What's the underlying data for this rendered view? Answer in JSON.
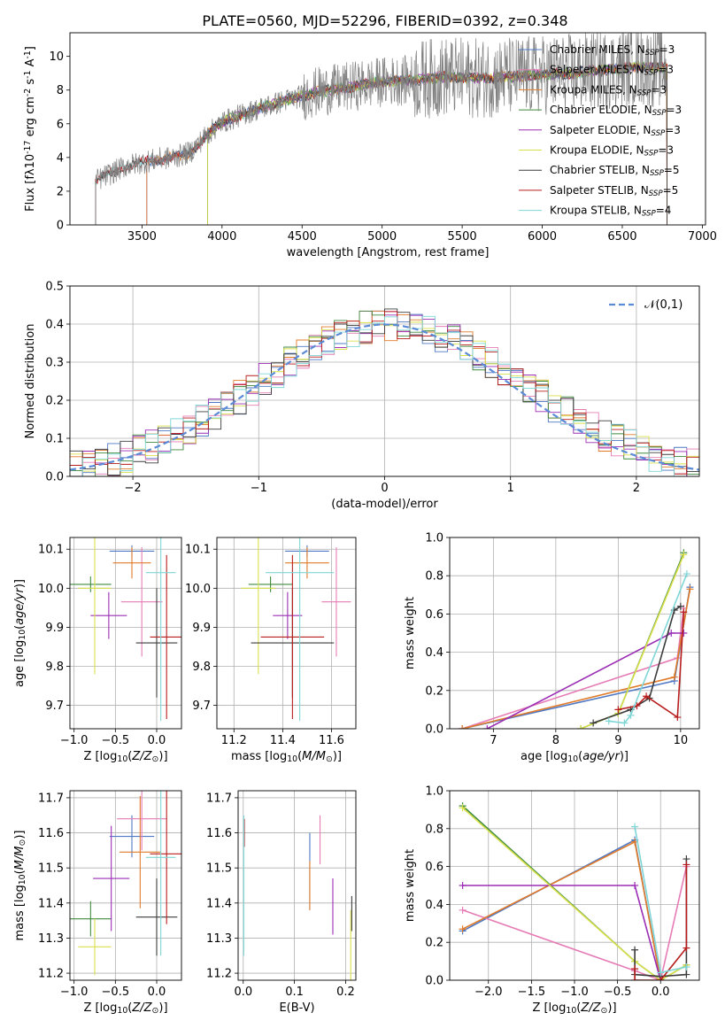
{
  "title": "PLATE=0560, MJD=52296, FIBERID=0392, z=0.348",
  "colors": {
    "chabrier_miles": "#4f78c4",
    "salpeter_miles": "#e67cb5",
    "kroupa_miles": "#e07b2a",
    "chabrier_elodie": "#3f8a3f",
    "salpeter_elodie": "#9b2db5",
    "kroupa_elodie": "#d9e04a",
    "chabrier_stelib": "#3c3c3c",
    "salpeter_stelib": "#b81d1d",
    "kroupa_stelib": "#7fd6d6",
    "data": "#808080",
    "normal": "#5b8bd6"
  },
  "chart_data": [
    {
      "id": "spectrum",
      "type": "line",
      "xlabel": "wavelength [Angstrom, rest frame]",
      "ylabel": "Flux [f$\\lambda$10$^{-17}$ erg cm$^{-2}$ s$^{-1}$ A$^{-1}$]",
      "xlim": [
        3050,
        7020
      ],
      "ylim": [
        0,
        11.4
      ],
      "xticks": [
        "3500",
        "4000",
        "4500",
        "5000",
        "5500",
        "6000",
        "6500",
        "7000"
      ],
      "yticks": [
        "0",
        "2",
        "4",
        "6",
        "8",
        "10"
      ],
      "legend_position": "top-right",
      "legend": [
        {
          "label": "Chabrier MILES, N",
          "sub": "SSP",
          "tail": "=3",
          "color": "chabrier_miles"
        },
        {
          "label": "Salpeter MILES, N",
          "sub": "SSP",
          "tail": "=3",
          "color": "salpeter_miles"
        },
        {
          "label": "Kroupa MILES, N",
          "sub": "SSP",
          "tail": "=3",
          "color": "kroupa_miles"
        },
        {
          "label": "Chabrier ELODIE, N",
          "sub": "SSP",
          "tail": "=3",
          "color": "chabrier_elodie"
        },
        {
          "label": "Salpeter ELODIE, N",
          "sub": "SSP",
          "tail": "=3",
          "color": "salpeter_elodie"
        },
        {
          "label": "Kroupa ELODIE, N",
          "sub": "SSP",
          "tail": "=3",
          "color": "kroupa_elodie"
        },
        {
          "label": "Chabrier STELIB, N",
          "sub": "SSP",
          "tail": "=5",
          "color": "chabrier_stelib"
        },
        {
          "label": "Salpeter STELIB, N",
          "sub": "SSP",
          "tail": "=5",
          "color": "salpeter_stelib"
        },
        {
          "label": "Kroupa STELIB, N",
          "sub": "SSP",
          "tail": "=4",
          "color": "kroupa_stelib"
        }
      ],
      "data_xrange": [
        3210,
        6780
      ],
      "continuum_x": [
        3210,
        3400,
        3600,
        3700,
        3800,
        3900,
        4000,
        4200,
        4400,
        4600,
        4800,
        5000,
        5200,
        5400,
        5600,
        5800,
        6000,
        6200,
        6400,
        6600,
        6780
      ],
      "continuum_y": [
        2.6,
        3.5,
        3.9,
        4.0,
        4.3,
        5.3,
        6.1,
        6.8,
        7.4,
        7.9,
        8.2,
        8.5,
        8.6,
        8.8,
        8.7,
        8.8,
        8.9,
        9.0,
        9.2,
        9.4,
        9.3
      ],
      "model_starts": [
        3210,
        3530,
        3910
      ]
    },
    {
      "id": "residuals",
      "type": "histogram",
      "xlabel": "(data-model)/error",
      "ylabel": "Normed distribution",
      "xlim": [
        -2.5,
        2.5
      ],
      "ylim": [
        0,
        0.5
      ],
      "xticks": [
        "−2",
        "−1",
        "0",
        "1",
        "2"
      ],
      "yticks": [
        "0.0",
        "0.1",
        "0.2",
        "0.3",
        "0.4",
        "0.5"
      ],
      "bin_width": 0.1,
      "legend_label": "$\\mathcal{N}(0,1)$",
      "legend_position": "top-right",
      "normal_mean": 0,
      "normal_std": 1
    },
    {
      "id": "z_age",
      "type": "scatter",
      "xlabel": "Z [log$_{10}$($Z/Z_\\odot$)]",
      "ylabel": "age  [log$_{10}$($age/yr$)]",
      "xlim": [
        -1.05,
        0.3
      ],
      "ylim": [
        9.64,
        10.13
      ],
      "xticks": [
        "−1.0",
        "−0.5",
        "0.0"
      ],
      "yticks": [
        "9.7",
        "9.8",
        "9.9",
        "10.0",
        "10.1"
      ],
      "points": [
        {
          "s": "chabrier_miles",
          "x": -0.3,
          "xe": 0.27,
          "y": 10.095,
          "ye": 0.015
        },
        {
          "s": "salpeter_miles",
          "x": -0.18,
          "xe": 0.25,
          "y": 9.965,
          "ye": 0.14
        },
        {
          "s": "kroupa_miles",
          "x": -0.3,
          "xe": 0.23,
          "y": 10.065,
          "ye": 0.04
        },
        {
          "s": "chabrier_elodie",
          "x": -0.8,
          "xe": 0.25,
          "y": 10.01,
          "ye": 0.02
        },
        {
          "s": "salpeter_elodie",
          "x": -0.58,
          "xe": 0.22,
          "y": 9.93,
          "ye": 0.06
        },
        {
          "s": "kroupa_elodie",
          "x": -0.75,
          "xe": 0.2,
          "y": 10.0,
          "ye": 0.22
        },
        {
          "s": "chabrier_stelib",
          "x": 0.0,
          "xe": 0.25,
          "y": 9.86,
          "ye": 0.14
        },
        {
          "s": "salpeter_stelib",
          "x": 0.12,
          "xe": 0.2,
          "y": 9.875,
          "ye": 0.21
        },
        {
          "s": "kroupa_stelib",
          "x": 0.05,
          "xe": 0.18,
          "y": 10.04,
          "ye": 0.38
        }
      ]
    },
    {
      "id": "mass_age",
      "type": "scatter",
      "xlabel": "mass [log$_{10}$($M/M_\\odot$)]",
      "ylabel": "",
      "xlim": [
        11.13,
        11.7
      ],
      "ylim": [
        9.64,
        10.13
      ],
      "xticks": [
        "11.2",
        "11.4",
        "11.6"
      ],
      "yticks": [
        "9.7",
        "9.8",
        "9.9",
        "10.0",
        "10.1"
      ],
      "points": [
        {
          "s": "chabrier_miles",
          "x": 11.5,
          "xe": 0.09,
          "y": 10.095,
          "ye": 0.015
        },
        {
          "s": "salpeter_miles",
          "x": 11.62,
          "xe": 0.06,
          "y": 9.965,
          "ye": 0.14
        },
        {
          "s": "kroupa_miles",
          "x": 11.5,
          "xe": 0.09,
          "y": 10.065,
          "ye": 0.04
        },
        {
          "s": "chabrier_elodie",
          "x": 11.35,
          "xe": 0.09,
          "y": 10.01,
          "ye": 0.02
        },
        {
          "s": "salpeter_elodie",
          "x": 11.42,
          "xe": 0.06,
          "y": 9.93,
          "ye": 0.06
        },
        {
          "s": "kroupa_elodie",
          "x": 11.3,
          "xe": 0.07,
          "y": 10.0,
          "ye": 0.22
        },
        {
          "s": "chabrier_stelib",
          "x": 11.44,
          "xe": 0.17,
          "y": 9.86,
          "ye": 0.14
        },
        {
          "s": "salpeter_stelib",
          "x": 11.44,
          "xe": 0.13,
          "y": 9.875,
          "ye": 0.21
        },
        {
          "s": "kroupa_stelib",
          "x": 11.47,
          "xe": 0.14,
          "y": 10.04,
          "ye": 0.38
        }
      ]
    },
    {
      "id": "age_weight",
      "type": "line",
      "xlabel": "age  [log$_{10}$($age/yr$)]",
      "ylabel": "mass weight",
      "xlim": [
        6.3,
        10.3
      ],
      "ylim": [
        0,
        1.0
      ],
      "xticks": [
        "7",
        "8",
        "9",
        "10"
      ],
      "yticks": [
        "0.0",
        "0.2",
        "0.4",
        "0.6",
        "0.8",
        "1.0"
      ],
      "series": [
        {
          "s": "chabrier_miles",
          "x": [
            6.5,
            9.9,
            10.15
          ],
          "y": [
            0.0,
            0.25,
            0.74
          ]
        },
        {
          "s": "salpeter_miles",
          "x": [
            6.5,
            9.95,
            10.05
          ],
          "y": [
            0.0,
            0.37,
            0.63
          ]
        },
        {
          "s": "kroupa_miles",
          "x": [
            6.5,
            9.9,
            10.15
          ],
          "y": [
            0.0,
            0.27,
            0.73
          ]
        },
        {
          "s": "chabrier_elodie",
          "x": [
            8.4,
            9.0,
            10.05
          ],
          "y": [
            0.0,
            0.08,
            0.92
          ]
        },
        {
          "s": "salpeter_elodie",
          "x": [
            6.9,
            9.85,
            10.05
          ],
          "y": [
            0.0,
            0.5,
            0.5
          ]
        },
        {
          "s": "kroupa_elodie",
          "x": [
            8.4,
            9.0,
            10.05
          ],
          "y": [
            0.0,
            0.08,
            0.91
          ]
        },
        {
          "s": "chabrier_stelib",
          "x": [
            8.6,
            9.2,
            9.5,
            9.9,
            10.0
          ],
          "y": [
            0.03,
            0.1,
            0.16,
            0.62,
            0.64
          ]
        },
        {
          "s": "salpeter_stelib",
          "x": [
            9.0,
            9.3,
            9.45,
            9.95,
            10.05
          ],
          "y": [
            0.1,
            0.12,
            0.17,
            0.06,
            0.61
          ]
        },
        {
          "s": "kroupa_stelib",
          "x": [
            8.85,
            9.1,
            9.2,
            10.1
          ],
          "y": [
            0.04,
            0.03,
            0.07,
            0.81
          ]
        }
      ]
    },
    {
      "id": "z_mass",
      "type": "scatter",
      "xlabel": "Z [log$_{10}$($Z/Z_\\odot$)]",
      "ylabel": "mass [log$_{10}$($M/M_\\odot$)]",
      "xlim": [
        -1.05,
        0.3
      ],
      "ylim": [
        11.18,
        11.72
      ],
      "xticks": [
        "−1.0",
        "−0.5",
        "0.0"
      ],
      "yticks": [
        "11.2",
        "11.3",
        "11.4",
        "11.5",
        "11.6",
        "11.7"
      ],
      "points": [
        {
          "s": "chabrier_miles",
          "x": -0.3,
          "xe": 0.27,
          "y": 11.59,
          "ye": 0.06
        },
        {
          "s": "salpeter_miles",
          "x": -0.18,
          "xe": 0.3,
          "y": 11.64,
          "ye": 0.09
        },
        {
          "s": "kroupa_miles",
          "x": -0.2,
          "xe": 0.25,
          "y": 11.545,
          "ye": 0.16
        },
        {
          "s": "chabrier_elodie",
          "x": -0.8,
          "xe": 0.25,
          "y": 11.355,
          "ye": 0.05
        },
        {
          "s": "salpeter_elodie",
          "x": -0.55,
          "xe": 0.22,
          "y": 11.47,
          "ye": 0.15
        },
        {
          "s": "kroupa_elodie",
          "x": -0.75,
          "xe": 0.2,
          "y": 11.275,
          "ye": 0.08
        },
        {
          "s": "chabrier_stelib",
          "x": 0.0,
          "xe": 0.25,
          "y": 11.36,
          "ye": 0.11
        },
        {
          "s": "salpeter_stelib",
          "x": 0.12,
          "xe": 0.2,
          "y": 11.54,
          "ye": 0.2
        },
        {
          "s": "kroupa_stelib",
          "x": 0.05,
          "xe": 0.18,
          "y": 11.53,
          "ye": 0.28
        }
      ]
    },
    {
      "id": "ebv_mass",
      "type": "scatter",
      "xlabel": "E(B-V)",
      "ylabel": "",
      "xlim": [
        -0.01,
        0.22
      ],
      "ylim": [
        11.18,
        11.72
      ],
      "xticks": [
        "0.0",
        "0.1",
        "0.2"
      ],
      "yticks": [
        "11.2",
        "11.3",
        "11.4",
        "11.5",
        "11.6",
        "11.7"
      ],
      "points": [
        {
          "s": "chabrier_miles",
          "x": 0.13,
          "xe": 0,
          "y": 11.49,
          "ye": 0.11
        },
        {
          "s": "salpeter_miles",
          "x": 0.15,
          "xe": 0,
          "y": 11.58,
          "ye": 0.07
        },
        {
          "s": "kroupa_miles",
          "x": 0.13,
          "xe": 0,
          "y": 11.45,
          "ye": 0.07
        },
        {
          "s": "salpeter_elodie",
          "x": 0.175,
          "xe": 0,
          "y": 11.39,
          "ye": 0.08
        },
        {
          "s": "kroupa_elodie",
          "x": 0.21,
          "xe": 0,
          "y": 11.28,
          "ye": 0.1
        },
        {
          "s": "chabrier_stelib",
          "x": 0.212,
          "xe": 0,
          "y": 11.37,
          "ye": 0.05
        },
        {
          "s": "salpeter_stelib",
          "x": 0.002,
          "xe": 0,
          "y": 11.6,
          "ye": 0.04
        },
        {
          "s": "kroupa_stelib",
          "x": 0.001,
          "xe": 0,
          "y": 11.45,
          "ye": 0.2
        }
      ]
    },
    {
      "id": "z_weight",
      "type": "line",
      "xlabel": "Z [log$_{10}$($Z/Z_\\odot$)]",
      "ylabel": "mass weight",
      "xlim": [
        -2.45,
        0.45
      ],
      "ylim": [
        0,
        1.0
      ],
      "xticks": [
        "−2.0",
        "−1.5",
        "−1.0",
        "−0.5",
        "0.0"
      ],
      "yticks": [
        "0.0",
        "0.2",
        "0.4",
        "0.6",
        "0.8",
        "1.0"
      ],
      "series": [
        {
          "s": "chabrier_miles",
          "x": [
            -2.3,
            -0.3,
            0.0
          ],
          "y": [
            0.26,
            0.74,
            0.0
          ]
        },
        {
          "s": "salpeter_miles",
          "x": [
            -2.3,
            -0.3,
            0.0,
            0.3
          ],
          "y": [
            0.37,
            0.05,
            0.0,
            0.6
          ]
        },
        {
          "s": "kroupa_miles",
          "x": [
            -2.3,
            -0.3,
            0.0
          ],
          "y": [
            0.27,
            0.73,
            0.0
          ]
        },
        {
          "s": "chabrier_elodie",
          "x": [
            -2.3,
            -0.3,
            0.0,
            0.3
          ],
          "y": [
            0.92,
            0.1,
            0.0,
            0.08
          ]
        },
        {
          "s": "salpeter_elodie",
          "x": [
            -2.3,
            -0.3,
            0.0
          ],
          "y": [
            0.5,
            0.5,
            0.0
          ]
        },
        {
          "s": "kroupa_elodie",
          "x": [
            -2.3,
            -0.3,
            0.0,
            0.3
          ],
          "y": [
            0.91,
            0.1,
            0.0,
            0.08
          ]
        },
        {
          "s": "chabrier_stelib",
          "x": [
            -0.3,
            -0.3,
            0.0,
            0.3,
            0.3
          ],
          "y": [
            0.16,
            0.03,
            0.02,
            0.03,
            0.64
          ]
        },
        {
          "s": "salpeter_stelib",
          "x": [
            -0.3,
            -0.3,
            0.0,
            0.3,
            0.3
          ],
          "y": [
            0.06,
            0.0,
            0.0,
            0.17,
            0.61
          ]
        },
        {
          "s": "kroupa_stelib",
          "x": [
            -0.3,
            0.0,
            0.3
          ],
          "y": [
            0.81,
            0.04,
            0.07
          ]
        }
      ]
    }
  ]
}
